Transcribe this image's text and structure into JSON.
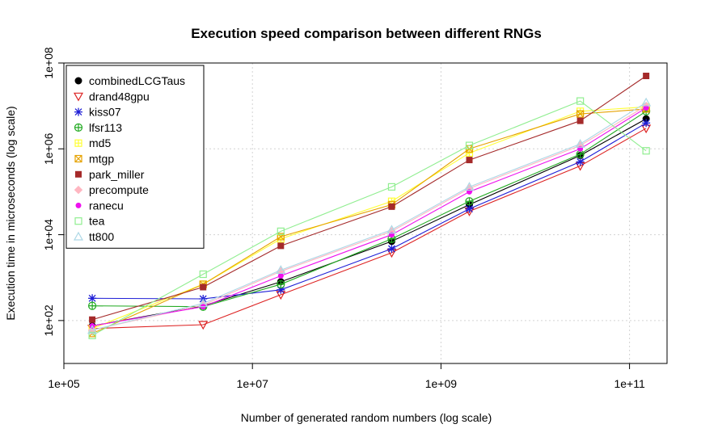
{
  "chart_data": {
    "type": "line",
    "title": "Execution speed comparison between different RNGs",
    "xlabel": "Number of generated random numbers (log scale)",
    "ylabel": "Execution time in microseconds (log scale)",
    "xscale": "log",
    "yscale": "log",
    "xlim": [
      100000,
      250000000000
    ],
    "ylim": [
      10,
      100000000
    ],
    "xticks": [
      100000,
      10000000,
      1000000000,
      100000000000
    ],
    "xtick_labels": [
      "1e+05",
      "1e+07",
      "1e+09",
      "1e+11"
    ],
    "yticks": [
      100,
      10000,
      1000000,
      100000000
    ],
    "ytick_labels": [
      "1e+02",
      "1e+04",
      "1e+06",
      "1e+08"
    ],
    "grid": true,
    "legend_position": "top-left",
    "x": [
      200000,
      3000000,
      20000000,
      300000000,
      2000000000,
      30000000000,
      150000000000
    ],
    "series": [
      {
        "name": "combinedLCGTaus",
        "color": "#000000",
        "marker": "filled-circle",
        "values": [
          75,
          220,
          800,
          7000,
          50000,
          700000,
          5000000
        ]
      },
      {
        "name": "drand48gpu",
        "color": "#dd2222",
        "marker": "triangle-down",
        "values": [
          65,
          80,
          400,
          3800,
          35000,
          400000,
          3000000
        ]
      },
      {
        "name": "kiss07",
        "color": "#1f1fd6",
        "marker": "asterisk",
        "values": [
          330,
          320,
          520,
          4700,
          40000,
          500000,
          4000000
        ]
      },
      {
        "name": "lfsr113",
        "color": "#22aa22",
        "marker": "circle-plus",
        "values": [
          220,
          210,
          700,
          8000,
          60000,
          750000,
          7500000
        ]
      },
      {
        "name": "md5",
        "color": "#ffff33",
        "marker": "square-plus",
        "values": [
          65,
          700,
          8000,
          60000,
          800000,
          7500000,
          9500000
        ]
      },
      {
        "name": "mtgp",
        "color": "#e6a200",
        "marker": "square-x",
        "values": [
          50,
          700,
          9000,
          50000,
          1000000,
          6500000,
          8500000
        ]
      },
      {
        "name": "park_miller",
        "color": "#a52a2a",
        "marker": "filled-square",
        "values": [
          105,
          600,
          5500,
          45000,
          550000,
          4500000,
          50000000
        ]
      },
      {
        "name": "precompute",
        "color": "#ffb6c1",
        "marker": "filled-diamond",
        "values": [
          60,
          230,
          1400,
          12000,
          120000,
          1200000,
          10000000
        ]
      },
      {
        "name": "ranecu",
        "color": "#ee11ee",
        "marker": "filled-circle-small",
        "values": [
          75,
          210,
          1100,
          10000,
          100000,
          1000000,
          9000000
        ]
      },
      {
        "name": "tea",
        "color": "#90ee90",
        "marker": "square",
        "values": [
          45,
          1200,
          12000,
          130000,
          1200000,
          13000000,
          900000
        ]
      },
      {
        "name": "tt800",
        "color": "#add8e6",
        "marker": "triangle-up",
        "values": [
          60,
          250,
          1500,
          13000,
          130000,
          1300000,
          12000000
        ]
      }
    ]
  }
}
